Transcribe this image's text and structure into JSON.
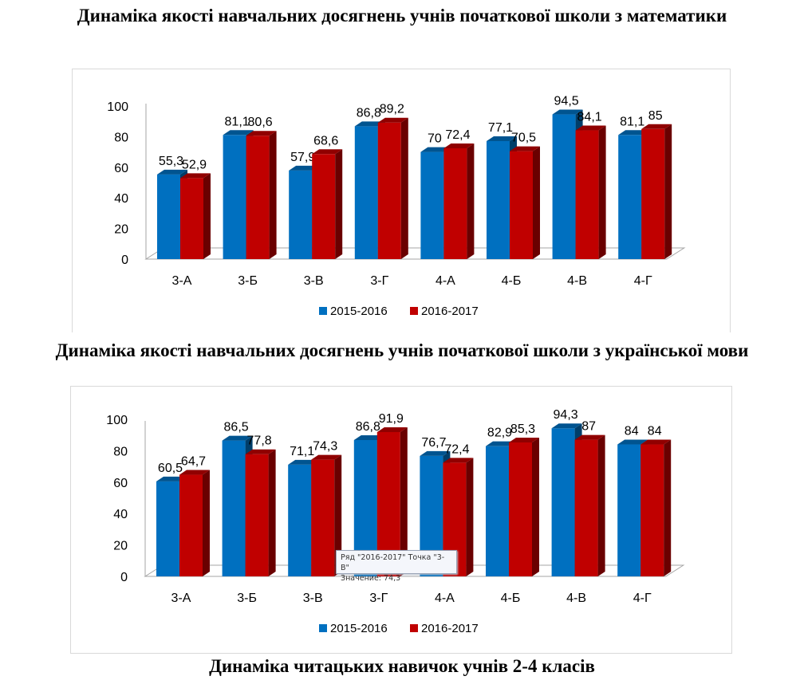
{
  "headings": [
    "Динаміка якості навчальних досягнень учнів початкової школи з математики",
    "Динаміка якості навчальних досягнень учнів початкової школи з української мови",
    "Динаміка читацьких навичок учнів 2-4 класів"
  ],
  "colors": {
    "series_2015": "#0070c0",
    "series_2016": "#c00000"
  },
  "chart_data": [
    {
      "type": "bar",
      "title": "",
      "categories": [
        "3-А",
        "3-Б",
        "3-В",
        "3-Г",
        "4-А",
        "4-Б",
        "4-В",
        "4-Г"
      ],
      "series": [
        {
          "name": "2015-2016",
          "values": [
            55.3,
            81.1,
            57.9,
            86.8,
            70,
            77.1,
            94.5,
            81.1
          ],
          "labels": [
            "55,3",
            "81,1",
            "57,9",
            "86,8",
            "70",
            "77,1",
            "94,5",
            "81,1"
          ]
        },
        {
          "name": "2016-2017",
          "values": [
            52.9,
            80.6,
            68.6,
            89.2,
            72.4,
            70.5,
            84.1,
            85
          ],
          "labels": [
            "52,9",
            "80,6",
            "68,6",
            "89,2",
            "72,4",
            "70,5",
            "84,1",
            "85"
          ]
        }
      ],
      "ylim": [
        0,
        100
      ],
      "yticks": [
        "0",
        "20",
        "40",
        "60",
        "80",
        "100"
      ],
      "legend": "bottom",
      "grid": false,
      "style": "3d-clustered-column"
    },
    {
      "type": "bar",
      "title": "",
      "categories": [
        "3-А",
        "3-Б",
        "3-В",
        "3-Г",
        "4-А",
        "4-Б",
        "4-В",
        "4-Г"
      ],
      "series": [
        {
          "name": "2015-2016",
          "values": [
            60.5,
            86.5,
            71.1,
            86.8,
            76.7,
            82.9,
            94.3,
            84
          ],
          "labels": [
            "60,5",
            "86,5",
            "71,1",
            "86,8",
            "76,7",
            "82,9",
            "94,3",
            "84"
          ]
        },
        {
          "name": "2016-2017",
          "values": [
            64.7,
            77.8,
            74.3,
            91.9,
            72.4,
            85.3,
            87,
            84
          ],
          "labels": [
            "64,7",
            "77,8",
            "74,3",
            "91,9",
            "72,4",
            "85,3",
            "87",
            "84"
          ]
        }
      ],
      "ylim": [
        0,
        100
      ],
      "yticks": [
        "0",
        "20",
        "40",
        "60",
        "80",
        "100"
      ],
      "legend": "bottom",
      "grid": false,
      "style": "3d-clustered-column",
      "tooltip": {
        "line1": "Ряд \"2016-2017\" Точка \"3-В\"",
        "line2": "Значение: 74,3"
      }
    }
  ]
}
